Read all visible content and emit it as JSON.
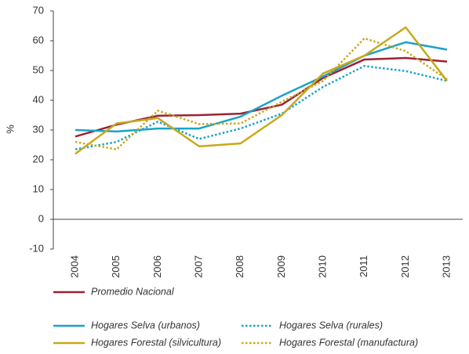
{
  "chart_data": {
    "type": "line",
    "y_label": "%",
    "categories": [
      "2004",
      "2005",
      "2006",
      "2007",
      "2008",
      "2009",
      "2010",
      "2011",
      "2012",
      "2013"
    ],
    "series": [
      {
        "name": "Promedio Nacional",
        "color": "#9b2335",
        "style": "solid",
        "values": [
          27.8,
          31.8,
          34.8,
          35,
          35.5,
          38.5,
          47.5,
          53.7,
          54.2,
          53
        ]
      },
      {
        "name": "Hogares Selva (urbanos)",
        "color": "#1aa3c8",
        "style": "solid",
        "values": [
          30,
          29.5,
          30.5,
          30.5,
          34.5,
          41.5,
          48,
          55,
          59.5,
          57
        ]
      },
      {
        "name": "Hogares Selva (rurales)",
        "color": "#1aa3c8",
        "style": "dotted",
        "values": [
          23.5,
          26,
          32.8,
          27,
          30.5,
          35.5,
          44.5,
          51.5,
          49.8,
          46.5
        ]
      },
      {
        "name": "Hogares Forestal (silvicultura)",
        "color": "#c9a81c",
        "style": "solid",
        "values": [
          22,
          32.2,
          34,
          24.5,
          25.5,
          35,
          49,
          55,
          64.5,
          46.5
        ]
      },
      {
        "name": "Hogares Forestal (manufactura)",
        "color": "#c9a81c",
        "style": "dotted",
        "values": [
          26,
          23.5,
          36.5,
          32,
          32.2,
          39.5,
          46.5,
          60.8,
          56.5,
          47
        ]
      }
    ],
    "ylim": [
      -10,
      70
    ],
    "yticks": [
      -10,
      0,
      10,
      20,
      30,
      40,
      50,
      60,
      70
    ],
    "grid": false
  }
}
